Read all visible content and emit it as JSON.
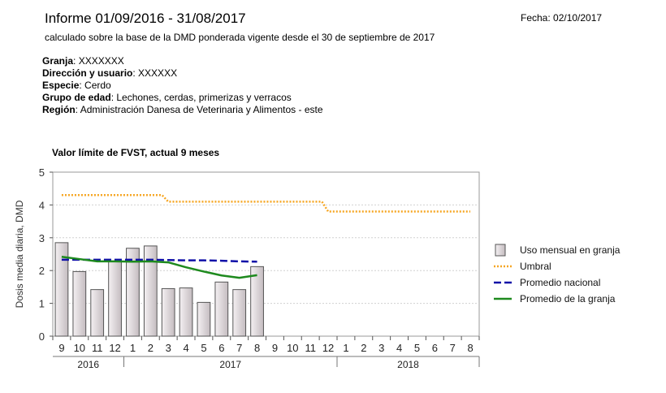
{
  "header": {
    "title": "Informe 01/09/2016 - 31/08/2017",
    "date": "Fecha: 02/10/2017",
    "subtitle": "calculado sobre la base de la DMD ponderada vigente desde el 30 de septiembre de 2017"
  },
  "info": [
    {
      "label": "Granja",
      "sep": ":   ",
      "value": "XXXXXXX"
    },
    {
      "label": "Dirección y usuario",
      "sep": ":  ",
      "value": "XXXXXX"
    },
    {
      "label": "Especie",
      "sep": ": ",
      "value": "Cerdo"
    },
    {
      "label": "Grupo de edad",
      "sep": ": ",
      "value": "Lechones, cerdas, primerizas y verracos"
    },
    {
      "label": "Región",
      "sep": ": ",
      "value": "Administración Danesa de Veterinaria y Alimentos - este"
    }
  ],
  "colors": {
    "bar_fill_light": "#f4f0f2",
    "bar_fill_dark": "#c4bcc0",
    "threshold": "#f6a623",
    "national": "#1010a8",
    "farm": "#1e8a1e",
    "grid": "#d0d0d0"
  },
  "chart_data": {
    "type": "bar",
    "title": "Valor límite de FVST, actual 9 meses",
    "ylabel": "Dosis media diaria, DMD",
    "xlabel": "",
    "ylim": [
      0,
      5
    ],
    "yticks": [
      "0",
      "1",
      "2",
      "3",
      "4",
      "5"
    ],
    "grid": true,
    "legend_position": "right",
    "categories": [
      "9",
      "10",
      "11",
      "12",
      "1",
      "2",
      "3",
      "4",
      "5",
      "6",
      "7",
      "8",
      "9",
      "10",
      "11",
      "12",
      "1",
      "2",
      "3",
      "4",
      "5",
      "6",
      "7",
      "8"
    ],
    "year_labels": [
      {
        "label": "2016",
        "start": 0,
        "end": 3
      },
      {
        "label": "2017",
        "start": 4,
        "end": 15
      },
      {
        "label": "2018",
        "start": 16,
        "end": 23
      }
    ],
    "series": [
      {
        "name": "Uso mensual en granja",
        "kind": "bar",
        "values": [
          2.85,
          1.97,
          1.42,
          2.27,
          2.68,
          2.75,
          1.45,
          1.47,
          1.03,
          1.65,
          1.42,
          2.12,
          null,
          null,
          null,
          null,
          null,
          null,
          null,
          null,
          null,
          null,
          null,
          null
        ]
      },
      {
        "name": "Umbral",
        "kind": "line",
        "style": "dotted",
        "values": [
          4.3,
          4.3,
          4.3,
          4.3,
          4.3,
          4.3,
          4.1,
          4.1,
          4.1,
          4.1,
          4.1,
          4.1,
          4.1,
          4.1,
          4.1,
          3.8,
          3.8,
          3.8,
          3.8,
          3.8,
          3.8,
          3.8,
          3.8,
          3.8
        ]
      },
      {
        "name": "Promedio nacional",
        "kind": "line",
        "style": "dashed",
        "values": [
          2.33,
          2.33,
          2.33,
          2.33,
          2.33,
          2.33,
          2.32,
          2.31,
          2.31,
          2.3,
          2.28,
          2.27,
          null,
          null,
          null,
          null,
          null,
          null,
          null,
          null,
          null,
          null,
          null,
          null
        ]
      },
      {
        "name": "Promedio de la granja",
        "kind": "line",
        "style": "solid",
        "values": [
          2.42,
          2.35,
          2.28,
          2.28,
          2.27,
          2.28,
          2.25,
          2.1,
          1.97,
          1.85,
          1.78,
          1.86,
          null,
          null,
          null,
          null,
          null,
          null,
          null,
          null,
          null,
          null,
          null,
          null
        ]
      }
    ]
  }
}
